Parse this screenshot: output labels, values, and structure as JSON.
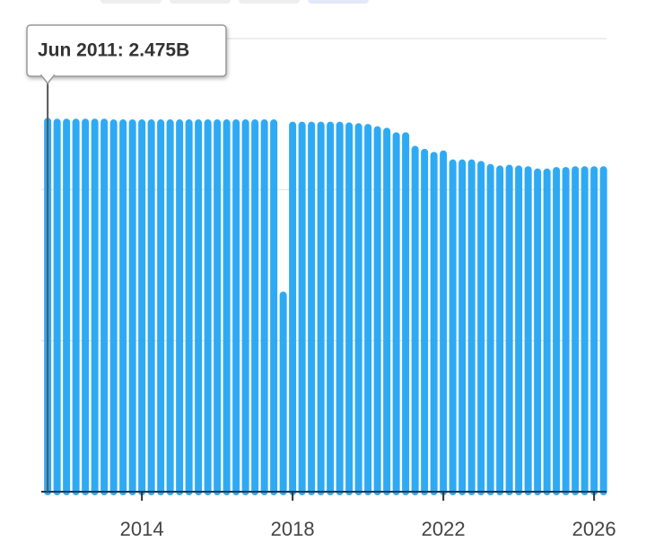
{
  "chart_data": {
    "type": "bar",
    "annotations": [
      "Jun 2011: 2.475B"
    ],
    "x": [
      2011.5,
      2011.75,
      2012,
      2012.25,
      2012.5,
      2012.75,
      2013,
      2013.25,
      2013.5,
      2013.75,
      2014,
      2014.25,
      2014.5,
      2014.75,
      2015,
      2015.25,
      2015.5,
      2015.75,
      2016,
      2016.25,
      2016.5,
      2016.75,
      2017,
      2017.25,
      2017.5,
      2017.75,
      2018,
      2018.25,
      2018.5,
      2018.75,
      2019,
      2019.25,
      2019.5,
      2019.75,
      2020,
      2020.25,
      2020.5,
      2020.75,
      2021,
      2021.25,
      2021.5,
      2021.75,
      2022,
      2022.25,
      2022.5,
      2022.75,
      2023,
      2023.25,
      2023.5,
      2023.75,
      2024,
      2024.25,
      2024.5,
      2024.75,
      2025,
      2025.25,
      2025.5,
      2025.75,
      2026,
      2026.25
    ],
    "values": [
      2.475,
      2.47,
      2.47,
      2.47,
      2.47,
      2.47,
      2.47,
      2.465,
      2.465,
      2.465,
      2.465,
      2.465,
      2.465,
      2.465,
      2.465,
      2.465,
      2.465,
      2.465,
      2.465,
      2.465,
      2.465,
      2.465,
      2.465,
      2.465,
      2.465,
      1.325,
      2.45,
      2.45,
      2.45,
      2.45,
      2.45,
      2.45,
      2.445,
      2.44,
      2.435,
      2.42,
      2.41,
      2.38,
      2.38,
      2.29,
      2.27,
      2.25,
      2.26,
      2.2,
      2.2,
      2.2,
      2.19,
      2.17,
      2.16,
      2.165,
      2.16,
      2.155,
      2.14,
      2.14,
      2.15,
      2.15,
      2.155,
      2.155,
      2.155,
      2.155
    ],
    "color": "#2eaaf5",
    "xlim": [
      2011.33,
      2026.33
    ],
    "xticks": [
      2014,
      2018,
      2022,
      2026
    ],
    "ylim": [
      0,
      3
    ],
    "yticks": [
      0,
      1,
      2,
      3
    ],
    "grid": true
  }
}
